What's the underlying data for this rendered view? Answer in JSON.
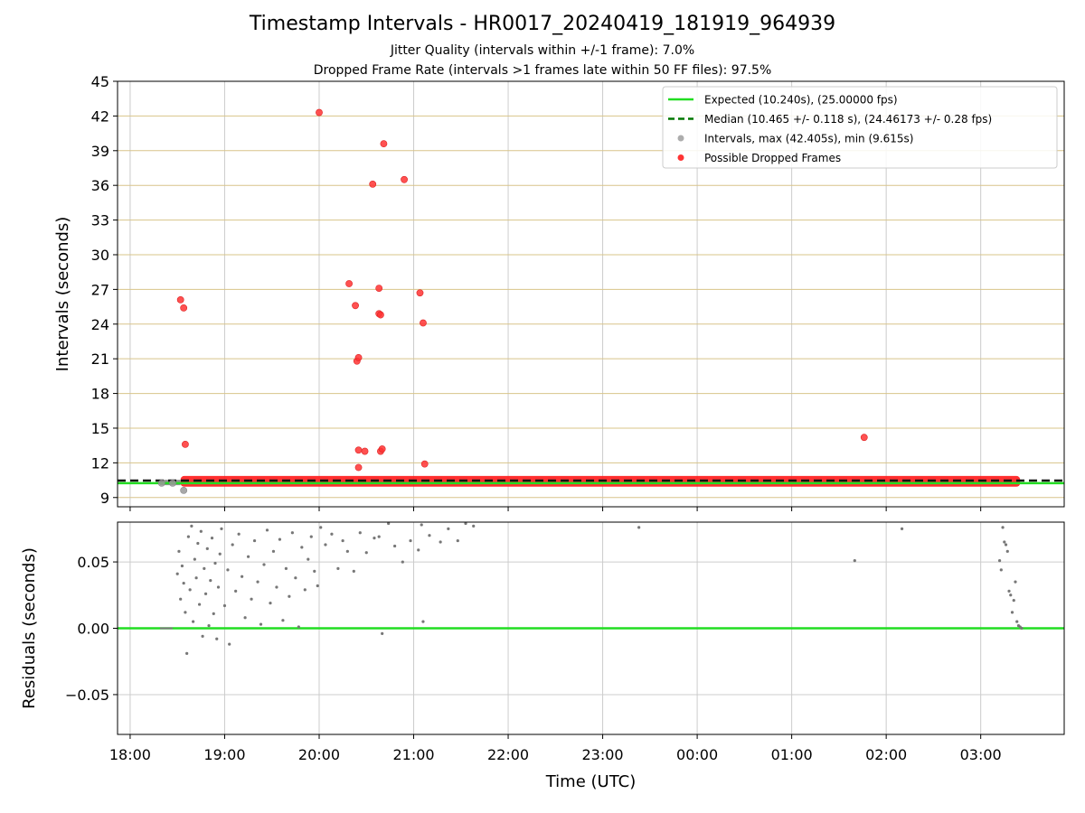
{
  "chart_data": [
    {
      "type": "scatter",
      "title": "Timestamp Intervals - HR0017_20240419_181919_964939",
      "subtitle_1": "Jitter Quality (intervals within +/-1 frame): 7.0%",
      "subtitle_2": "Dropped Frame Rate (intervals >1 frames late within 50 FF files): 97.5%",
      "ylabel": "Intervals (seconds)",
      "ylim": [
        8.2,
        45
      ],
      "yticks": [
        "9",
        "12",
        "15",
        "18",
        "21",
        "24",
        "27",
        "30",
        "33",
        "36",
        "39",
        "42",
        "45"
      ],
      "xlim": [
        "17:52",
        "03:53"
      ],
      "grid": true,
      "legend_position": "top-right",
      "legend": [
        {
          "label": "Expected (10.240s), (25.00000 fps)",
          "color": "#22dd22",
          "style": "solid-line"
        },
        {
          "label": "Median (10.465 +/- 0.118 s), (24.46173 +/- 0.28 fps)",
          "color": "#007700",
          "style": "dashed-line"
        },
        {
          "label": "Intervals, max (42.405s), min (9.615s)",
          "color": "#999999",
          "style": "marker"
        },
        {
          "label": "Possible Dropped Frames",
          "color": "#ff0000",
          "style": "marker"
        }
      ],
      "expected_interval": 10.24,
      "median_interval": 10.465,
      "dense_band": {
        "start": "18:32",
        "end": "03:25",
        "low": 10.25,
        "high": 10.55
      },
      "series": [
        {
          "name": "Possible Dropped Frames",
          "color": "#ff3333",
          "points": [
            [
              "18:32",
              26.1
            ],
            [
              "18:34",
              25.4
            ],
            [
              "18:35",
              13.6
            ],
            [
              "20:00",
              42.3
            ],
            [
              "20:19",
              27.5
            ],
            [
              "20:23",
              25.6
            ],
            [
              "20:24",
              20.8
            ],
            [
              "20:25",
              21.1
            ],
            [
              "20:25",
              13.1
            ],
            [
              "20:25",
              11.6
            ],
            [
              "20:29",
              13.0
            ],
            [
              "20:34",
              36.1
            ],
            [
              "20:38",
              24.9
            ],
            [
              "20:39",
              24.8
            ],
            [
              "20:38",
              27.1
            ],
            [
              "20:39",
              13.0
            ],
            [
              "20:40",
              13.2
            ],
            [
              "20:41",
              39.6
            ],
            [
              "20:54",
              36.5
            ],
            [
              "21:04",
              26.7
            ],
            [
              "21:06",
              24.1
            ],
            [
              "21:07",
              11.9
            ],
            [
              "01:46",
              14.2
            ]
          ]
        },
        {
          "name": "Intervals",
          "color": "#999999",
          "points": [
            [
              "18:20",
              10.24
            ],
            [
              "18:27",
              10.24
            ],
            [
              "18:34",
              9.615
            ]
          ]
        }
      ]
    },
    {
      "type": "scatter",
      "ylabel": "Residuals (seconds)",
      "xlabel": "Time (UTC)",
      "ylim": [
        -0.08,
        0.08
      ],
      "yticks": [
        "−0.05",
        "0.00",
        "0.05"
      ],
      "xticks": [
        "18:00",
        "19:00",
        "20:00",
        "21:00",
        "22:00",
        "23:00",
        "00:00",
        "01:00",
        "02:00",
        "03:00"
      ],
      "xlim": [
        "17:52",
        "03:53"
      ],
      "grid": true,
      "zero_line_color": "#22dd22",
      "series": [
        {
          "name": "Residuals",
          "color": "#777777",
          "points": [
            [
              "18:30",
              0.041
            ],
            [
              "18:31",
              0.058
            ],
            [
              "18:32",
              0.022
            ],
            [
              "18:33",
              0.047
            ],
            [
              "18:34",
              0.034
            ],
            [
              "18:35",
              0.012
            ],
            [
              "18:36",
              -0.019
            ],
            [
              "18:37",
              0.069
            ],
            [
              "18:38",
              0.029
            ],
            [
              "18:39",
              0.077
            ],
            [
              "18:40",
              0.005
            ],
            [
              "18:41",
              0.052
            ],
            [
              "18:42",
              0.038
            ],
            [
              "18:43",
              0.064
            ],
            [
              "18:44",
              0.018
            ],
            [
              "18:45",
              0.073
            ],
            [
              "18:46",
              -0.006
            ],
            [
              "18:47",
              0.045
            ],
            [
              "18:48",
              0.026
            ],
            [
              "18:49",
              0.06
            ],
            [
              "18:50",
              0.002
            ],
            [
              "18:51",
              0.036
            ],
            [
              "18:52",
              0.068
            ],
            [
              "18:53",
              0.011
            ],
            [
              "18:54",
              0.049
            ],
            [
              "18:55",
              -0.008
            ],
            [
              "18:56",
              0.031
            ],
            [
              "18:57",
              0.056
            ],
            [
              "18:58",
              0.075
            ],
            [
              "19:00",
              0.017
            ],
            [
              "19:02",
              0.044
            ],
            [
              "19:03",
              -0.012
            ],
            [
              "19:05",
              0.063
            ],
            [
              "19:07",
              0.028
            ],
            [
              "19:09",
              0.071
            ],
            [
              "19:11",
              0.039
            ],
            [
              "19:13",
              0.008
            ],
            [
              "19:15",
              0.054
            ],
            [
              "19:17",
              0.022
            ],
            [
              "19:19",
              0.066
            ],
            [
              "19:21",
              0.035
            ],
            [
              "19:23",
              0.003
            ],
            [
              "19:25",
              0.048
            ],
            [
              "19:27",
              0.074
            ],
            [
              "19:29",
              0.019
            ],
            [
              "19:31",
              0.058
            ],
            [
              "19:33",
              0.031
            ],
            [
              "19:35",
              0.067
            ],
            [
              "19:37",
              0.006
            ],
            [
              "19:39",
              0.045
            ],
            [
              "19:41",
              0.024
            ],
            [
              "19:43",
              0.072
            ],
            [
              "19:45",
              0.038
            ],
            [
              "19:47",
              0.001
            ],
            [
              "19:49",
              0.061
            ],
            [
              "19:51",
              0.029
            ],
            [
              "19:53",
              0.052
            ],
            [
              "19:55",
              0.069
            ],
            [
              "19:57",
              0.043
            ],
            [
              "19:59",
              0.032
            ],
            [
              "20:01",
              0.076
            ],
            [
              "20:04",
              0.063
            ],
            [
              "20:08",
              0.071
            ],
            [
              "20:12",
              0.045
            ],
            [
              "20:15",
              0.066
            ],
            [
              "20:18",
              0.058
            ],
            [
              "20:22",
              0.043
            ],
            [
              "20:26",
              0.072
            ],
            [
              "20:30",
              0.057
            ],
            [
              "20:35",
              0.068
            ],
            [
              "20:38",
              0.069
            ],
            [
              "20:40",
              -0.004
            ],
            [
              "20:44",
              0.079
            ],
            [
              "20:48",
              0.062
            ],
            [
              "20:53",
              0.05
            ],
            [
              "20:58",
              0.066
            ],
            [
              "21:03",
              0.059
            ],
            [
              "21:05",
              0.078
            ],
            [
              "21:06",
              0.005
            ],
            [
              "21:10",
              0.07
            ],
            [
              "21:17",
              0.065
            ],
            [
              "21:22",
              0.075
            ],
            [
              "21:28",
              0.066
            ],
            [
              "21:33",
              0.079
            ],
            [
              "21:38",
              0.077
            ],
            [
              "23:23",
              0.076
            ],
            [
              "01:40",
              0.051
            ],
            [
              "02:10",
              0.075
            ],
            [
              "03:12",
              0.051
            ],
            [
              "03:13",
              0.044
            ],
            [
              "03:14",
              0.076
            ],
            [
              "03:15",
              0.065
            ],
            [
              "03:16",
              0.063
            ],
            [
              "03:17",
              0.058
            ],
            [
              "03:18",
              0.028
            ],
            [
              "03:19",
              0.025
            ],
            [
              "03:20",
              0.012
            ],
            [
              "03:21",
              0.021
            ],
            [
              "03:22",
              0.035
            ],
            [
              "03:23",
              0.005
            ],
            [
              "03:24",
              0.002
            ],
            [
              "03:25",
              0.001
            ],
            [
              "03:26",
              0.0
            ]
          ]
        }
      ]
    }
  ]
}
